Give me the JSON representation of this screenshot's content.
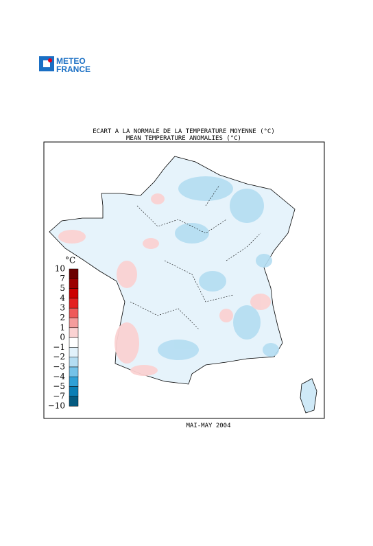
{
  "logo": {
    "line1": "METEO",
    "line2": "FRANCE"
  },
  "title": {
    "fr": "ECART A LA NORMALE DE LA TEMPERATURE MOYENNE (°C)",
    "en": "MEAN TEMPERATURE ANOMALIES (°C)"
  },
  "legend": {
    "unit": "°C",
    "labels": [
      "10",
      "7",
      "5",
      "4",
      "3",
      "2",
      "1",
      "0",
      "−1",
      "−2",
      "−3",
      "−4",
      "−5",
      "−7",
      "−10"
    ],
    "colors": [
      "#6b0000",
      "#9c0000",
      "#cc0000",
      "#e32020",
      "#ef5a5a",
      "#f49c9c",
      "#fbd2d2",
      "#ffffff",
      "#e2f2fb",
      "#b4ddf2",
      "#74c2e8",
      "#2fa0d6",
      "#0a7eb5",
      "#045a80"
    ]
  },
  "date": "MAI-MAY 2004"
}
